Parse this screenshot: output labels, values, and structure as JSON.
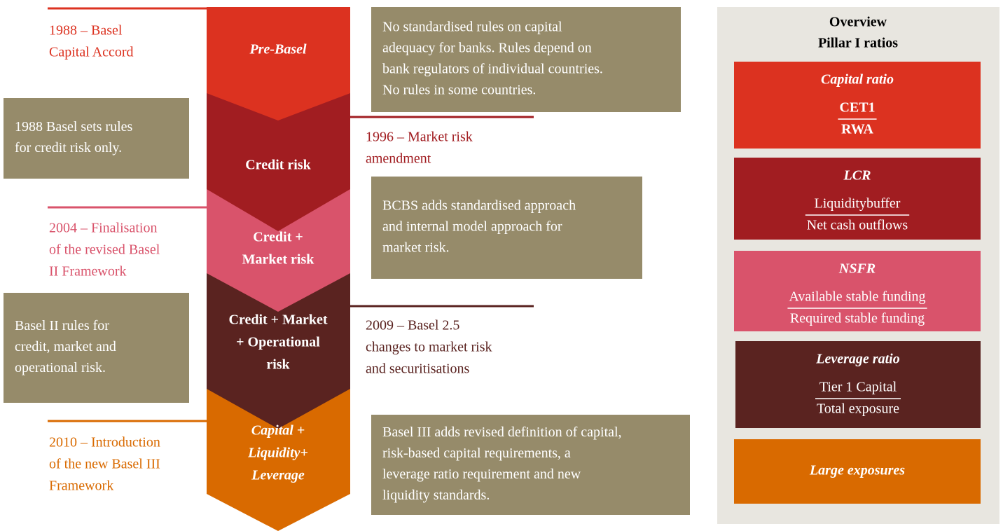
{
  "stages": [
    {
      "label": [
        "Pre-Basel"
      ]
    },
    {
      "label": [
        "Credit risk"
      ]
    },
    {
      "label": [
        "Credit +",
        "Market risk"
      ]
    },
    {
      "label": [
        "Credit + Market",
        "+ Operational",
        "risk"
      ]
    },
    {
      "label": [
        "Capital +",
        "Liquidity+",
        "Leverage"
      ]
    }
  ],
  "milestones": [
    {
      "lines": [
        "1988 – Basel",
        "Capital Accord"
      ]
    },
    {
      "lines": [
        "1996 – Market risk",
        "amendment"
      ]
    },
    {
      "lines": [
        "2004 – Finalisation",
        "of  the revised Basel",
        "II Framework"
      ]
    },
    {
      "lines": [
        "2009 – Basel 2.5",
        "changes to market risk",
        "and securitisations"
      ]
    },
    {
      "lines": [
        "2010 – Introduction",
        "of the new Basel III",
        "Framework"
      ]
    }
  ],
  "descriptions": [
    {
      "lines": [
        "No standardised rules on capital",
        "adequacy for banks. Rules depend on",
        "bank regulators of individual countries.",
        "No rules in some countries."
      ]
    },
    {
      "lines": [
        "1988 Basel sets rules",
        "for credit risk only."
      ]
    },
    {
      "lines": [
        "BCBS adds standardised approach",
        "and internal model approach for",
        "market risk."
      ]
    },
    {
      "lines": [
        "Basel II rules for",
        "credit, market and",
        "operational risk."
      ]
    },
    {
      "lines": [
        "Basel III adds revised definition of capital,",
        "risk-based capital requirements, a",
        "leverage ratio requirement and new",
        "liquidity standards."
      ]
    }
  ],
  "overview": {
    "title": [
      "Overview",
      "Pillar I ratios"
    ],
    "ratios": [
      {
        "name": "Capital ratio",
        "numerator": "CET1",
        "denominator": "RWA"
      },
      {
        "name": "LCR",
        "numerator": "Liquiditybuffer",
        "denominator": "Net cash outflows"
      },
      {
        "name": "NSFR",
        "numerator": "Available stable funding",
        "denominator": "Required stable funding"
      },
      {
        "name": "Leverage ratio",
        "numerator": "Tier 1 Capital",
        "denominator": "Total exposure"
      },
      {
        "name": "Large exposures"
      }
    ]
  }
}
